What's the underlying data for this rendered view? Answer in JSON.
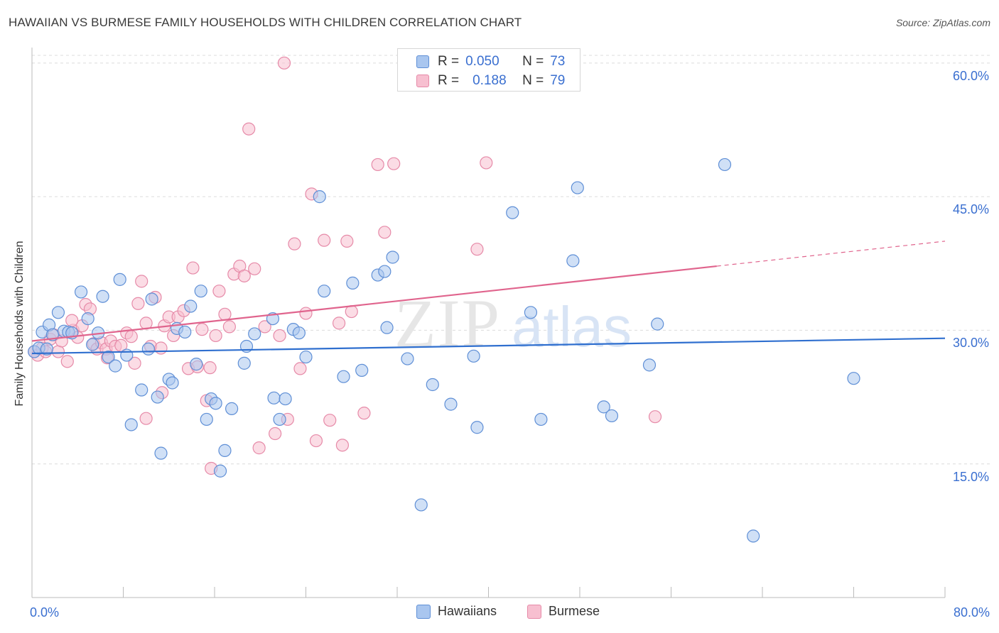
{
  "chart_data": {
    "type": "scatter",
    "title": "HAWAIIAN VS BURMESE FAMILY HOUSEHOLDS WITH CHILDREN CORRELATION CHART",
    "source": "Source: ZipAtlas.com",
    "xlabel": "",
    "ylabel": "Family Households with Children",
    "xlim": [
      0,
      80
    ],
    "ylim": [
      0,
      61.5
    ],
    "x_tick_labels": [
      "0.0%",
      "80.0%"
    ],
    "y_ticks": [
      {
        "value": 15,
        "label": "15.0%"
      },
      {
        "value": 30,
        "label": "30.0%"
      },
      {
        "value": 45,
        "label": "45.0%"
      },
      {
        "value": 60,
        "label": "60.0%"
      }
    ],
    "grid": true,
    "watermark": "ZIPatlas",
    "legend": {
      "rows": [
        {
          "r_label": "R =",
          "r_value": "0.050",
          "n_label": "N =",
          "n_value": "73"
        },
        {
          "r_label": "R =",
          "r_value": "0.188",
          "n_label": "N =",
          "n_value": "79"
        }
      ],
      "bottom": [
        "Hawaiians",
        "Burmese"
      ]
    },
    "colors": {
      "hawaiians_fill": "#a9c6ef",
      "hawaiians_stroke": "#5f8fd6",
      "hawaiians_line": "#2f6fcf",
      "burmese_fill": "#f7bfd0",
      "burmese_stroke": "#e68aa8",
      "burmese_line": "#e0648d",
      "axis_text": "#3a6fd0"
    },
    "series": [
      {
        "name": "Hawaiians",
        "trend": {
          "x0": 0,
          "y0": 27.4,
          "x1": 80,
          "y1": 29.1
        },
        "points": [
          [
            0.2,
            27.6
          ],
          [
            0.6,
            28.0
          ],
          [
            0.9,
            29.8
          ],
          [
            1.3,
            27.9
          ],
          [
            1.5,
            30.6
          ],
          [
            1.8,
            29.5
          ],
          [
            2.3,
            32.0
          ],
          [
            2.8,
            29.9
          ],
          [
            3.2,
            29.8
          ],
          [
            3.5,
            29.7
          ],
          [
            4.3,
            34.3
          ],
          [
            4.9,
            31.3
          ],
          [
            5.3,
            28.4
          ],
          [
            5.8,
            29.7
          ],
          [
            6.2,
            33.8
          ],
          [
            6.7,
            27.0
          ],
          [
            7.3,
            26.0
          ],
          [
            7.7,
            35.7
          ],
          [
            8.3,
            27.2
          ],
          [
            8.7,
            19.4
          ],
          [
            9.6,
            23.3
          ],
          [
            10.2,
            27.9
          ],
          [
            10.5,
            33.5
          ],
          [
            11.0,
            22.5
          ],
          [
            11.3,
            16.2
          ],
          [
            12.0,
            24.5
          ],
          [
            12.3,
            24.1
          ],
          [
            12.7,
            30.2
          ],
          [
            13.4,
            29.8
          ],
          [
            13.9,
            32.7
          ],
          [
            14.4,
            26.2
          ],
          [
            14.8,
            34.4
          ],
          [
            15.3,
            20.0
          ],
          [
            15.7,
            22.3
          ],
          [
            16.1,
            21.8
          ],
          [
            16.5,
            14.2
          ],
          [
            16.9,
            16.5
          ],
          [
            17.5,
            21.2
          ],
          [
            18.6,
            26.3
          ],
          [
            18.8,
            28.2
          ],
          [
            19.5,
            29.6
          ],
          [
            21.1,
            31.3
          ],
          [
            21.2,
            22.4
          ],
          [
            21.7,
            20.0
          ],
          [
            22.2,
            22.3
          ],
          [
            22.9,
            30.1
          ],
          [
            23.4,
            29.7
          ],
          [
            24.0,
            27.0
          ],
          [
            25.2,
            45.0
          ],
          [
            25.6,
            34.4
          ],
          [
            27.3,
            24.8
          ],
          [
            28.1,
            35.3
          ],
          [
            28.9,
            25.5
          ],
          [
            30.3,
            36.2
          ],
          [
            30.9,
            36.6
          ],
          [
            31.1,
            30.3
          ],
          [
            31.6,
            38.2
          ],
          [
            32.9,
            26.8
          ],
          [
            34.1,
            10.4
          ],
          [
            35.1,
            23.9
          ],
          [
            36.7,
            21.7
          ],
          [
            38.7,
            27.1
          ],
          [
            39.0,
            19.1
          ],
          [
            42.1,
            43.2
          ],
          [
            43.7,
            32.0
          ],
          [
            44.6,
            20.0
          ],
          [
            47.4,
            37.8
          ],
          [
            47.8,
            46.0
          ],
          [
            50.1,
            21.4
          ],
          [
            50.8,
            20.4
          ],
          [
            54.1,
            26.1
          ],
          [
            54.8,
            30.7
          ],
          [
            60.7,
            48.6
          ],
          [
            63.2,
            6.9
          ],
          [
            72.0,
            24.6
          ]
        ]
      },
      {
        "name": "Burmese",
        "trend": {
          "x0": 0,
          "y0": 28.8,
          "x1": 60,
          "y1": 37.2,
          "dashed_to_x": 80,
          "dashed_to_y": 40.0
        },
        "points": [
          [
            0.2,
            27.6
          ],
          [
            0.5,
            27.2
          ],
          [
            0.9,
            28.0
          ],
          [
            1.2,
            27.6
          ],
          [
            1.6,
            29.0
          ],
          [
            1.9,
            29.5
          ],
          [
            2.3,
            27.6
          ],
          [
            2.6,
            28.8
          ],
          [
            3.1,
            26.5
          ],
          [
            3.6,
            30.0
          ],
          [
            4.0,
            29.2
          ],
          [
            4.4,
            30.5
          ],
          [
            4.7,
            32.9
          ],
          [
            5.1,
            32.4
          ],
          [
            5.4,
            28.5
          ],
          [
            5.7,
            27.9
          ],
          [
            6.1,
            28.6
          ],
          [
            6.5,
            27.9
          ],
          [
            6.9,
            28.8
          ],
          [
            7.3,
            28.2
          ],
          [
            7.8,
            28.3
          ],
          [
            8.3,
            29.7
          ],
          [
            8.7,
            29.3
          ],
          [
            9.0,
            26.3
          ],
          [
            9.3,
            33.0
          ],
          [
            9.6,
            35.5
          ],
          [
            10.0,
            30.8
          ],
          [
            10.4,
            28.2
          ],
          [
            10.8,
            33.7
          ],
          [
            11.3,
            28.0
          ],
          [
            11.6,
            30.5
          ],
          [
            12.0,
            31.5
          ],
          [
            12.4,
            29.4
          ],
          [
            12.8,
            31.5
          ],
          [
            13.3,
            32.2
          ],
          [
            13.7,
            25.7
          ],
          [
            14.1,
            37.0
          ],
          [
            14.5,
            25.9
          ],
          [
            14.9,
            30.1
          ],
          [
            15.3,
            22.1
          ],
          [
            15.7,
            14.5
          ],
          [
            16.1,
            29.4
          ],
          [
            16.4,
            34.4
          ],
          [
            16.9,
            31.8
          ],
          [
            17.3,
            30.4
          ],
          [
            17.7,
            36.3
          ],
          [
            18.2,
            37.2
          ],
          [
            18.6,
            36.1
          ],
          [
            19.0,
            52.6
          ],
          [
            19.5,
            36.9
          ],
          [
            19.9,
            16.8
          ],
          [
            20.4,
            30.4
          ],
          [
            21.3,
            18.4
          ],
          [
            21.7,
            29.4
          ],
          [
            22.4,
            20.0
          ],
          [
            23.0,
            39.7
          ],
          [
            23.5,
            25.7
          ],
          [
            24.0,
            31.9
          ],
          [
            24.5,
            45.3
          ],
          [
            24.9,
            17.6
          ],
          [
            25.6,
            40.1
          ],
          [
            26.1,
            19.9
          ],
          [
            26.9,
            30.8
          ],
          [
            27.2,
            17.1
          ],
          [
            27.6,
            40.0
          ],
          [
            28.0,
            32.1
          ],
          [
            29.1,
            20.7
          ],
          [
            30.3,
            48.6
          ],
          [
            30.9,
            41.0
          ],
          [
            31.7,
            48.7
          ],
          [
            39.0,
            39.1
          ],
          [
            39.8,
            48.8
          ],
          [
            54.6,
            20.3
          ],
          [
            22.1,
            60.0
          ],
          [
            6.6,
            26.9
          ],
          [
            11.4,
            23.0
          ],
          [
            15.6,
            25.8
          ],
          [
            10.0,
            20.1
          ],
          [
            3.5,
            31.1
          ]
        ]
      }
    ]
  }
}
